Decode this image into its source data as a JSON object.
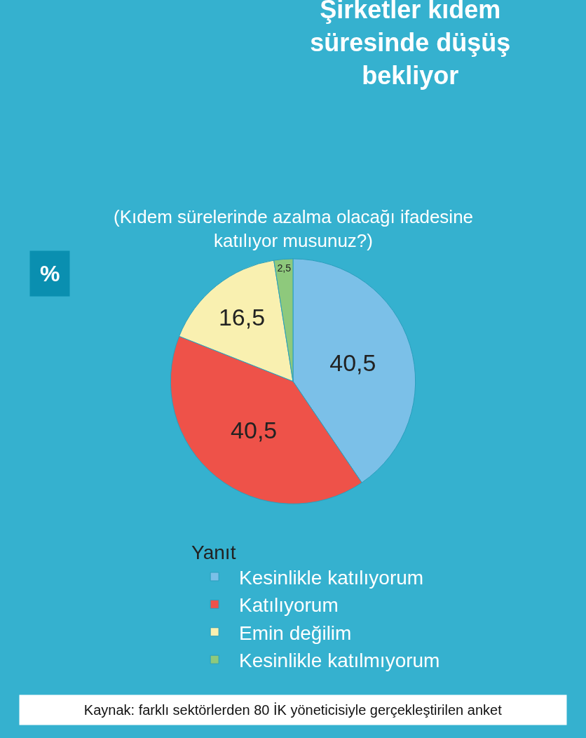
{
  "chart_data": {
    "type": "pie",
    "title": "Şirketler kıdem süresinde düşüş bekliyor",
    "subtitle": "(Kıdem sürelerinde azalma olacağı ifadesine katılıyor musunuz?)",
    "categories": [
      "Kesinlikle katılıyorum",
      "Katılıyorum",
      "Emin değilim",
      "Kesinlikle katılmıyorum"
    ],
    "values": [
      40.5,
      40.5,
      16.5,
      2.5
    ],
    "value_labels": [
      "40,5",
      "40,5",
      "16,5",
      "2,5"
    ],
    "colors": [
      "#7bc0e8",
      "#ee5249",
      "#f9f0b0",
      "#8ec97c"
    ],
    "legend_title": "Yanıt",
    "legend": "bottom",
    "annotations": [
      "%",
      "Kaynak: farklı sektörlerden 80 İK yöneticisiyle gerçekleştirilen anket"
    ]
  }
}
